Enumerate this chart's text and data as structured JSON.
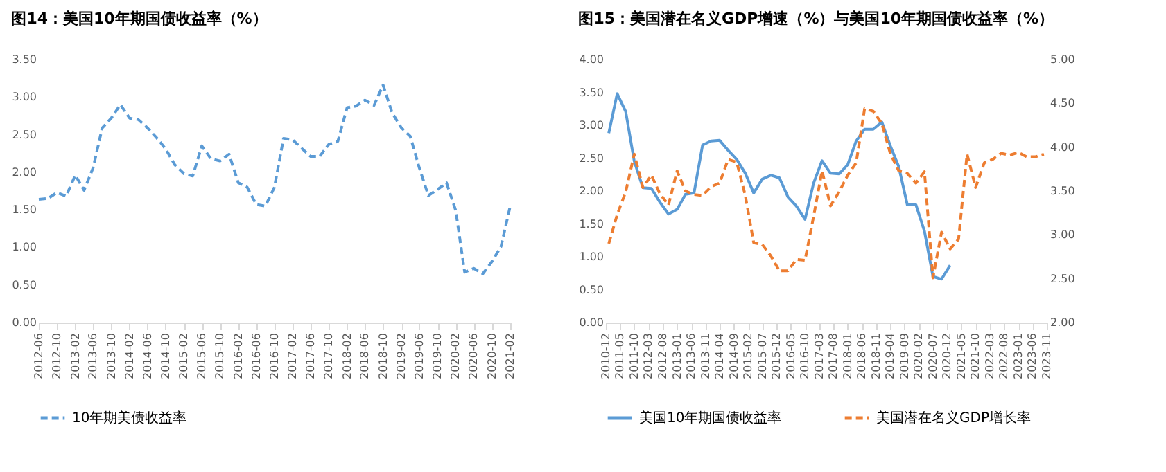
{
  "chart_data": [
    {
      "type": "line",
      "title": "图14：美国10年期国债收益率（%）",
      "legend": "bottom",
      "xlim": [
        "2012-06",
        "2021-02"
      ],
      "xticks": [
        "2012-06",
        "2012-10",
        "2013-02",
        "2013-06",
        "2013-10",
        "2014-02",
        "2014-06",
        "2014-10",
        "2015-02",
        "2015-06",
        "2015-10",
        "2016-02",
        "2016-06",
        "2016-10",
        "2017-02",
        "2017-06",
        "2017-10",
        "2018-02",
        "2018-06",
        "2018-10",
        "2019-02",
        "2019-06",
        "2019-10",
        "2020-02",
        "2020-06",
        "2020-10",
        "2021-02"
      ],
      "ylim": [
        0,
        3.5
      ],
      "yticks": [
        {
          "value": 0,
          "label": "0.00"
        },
        {
          "value": 0.5,
          "label": "0.50"
        },
        {
          "value": 1,
          "label": "1.00"
        },
        {
          "value": 1.5,
          "label": "1.50"
        },
        {
          "value": 2,
          "label": "2.00"
        },
        {
          "value": 2.5,
          "label": "2.50"
        },
        {
          "value": 3,
          "label": "3.00"
        },
        {
          "value": 3.5,
          "label": "3.50"
        }
      ],
      "x": [
        "2012-06",
        "2012-08",
        "2012-10",
        "2012-12",
        "2013-02",
        "2013-04",
        "2013-06",
        "2013-08",
        "2013-10",
        "2013-12",
        "2014-02",
        "2014-04",
        "2014-06",
        "2014-08",
        "2014-10",
        "2014-12",
        "2015-02",
        "2015-04",
        "2015-06",
        "2015-08",
        "2015-10",
        "2015-12",
        "2016-02",
        "2016-04",
        "2016-06",
        "2016-08",
        "2016-10",
        "2016-12",
        "2017-02",
        "2017-04",
        "2017-06",
        "2017-08",
        "2017-10",
        "2017-12",
        "2018-02",
        "2018-04",
        "2018-06",
        "2018-08",
        "2018-10",
        "2018-12",
        "2019-02",
        "2019-04",
        "2019-06",
        "2019-08",
        "2019-10",
        "2019-12",
        "2020-02",
        "2020-04",
        "2020-06",
        "2020-08",
        "2020-10",
        "2020-12",
        "2021-02"
      ],
      "series": [
        {
          "name": "10年期美债收益率",
          "color": "#5b9bd5",
          "line_style": "dashed",
          "values": [
            1.64,
            1.65,
            1.73,
            1.68,
            1.96,
            1.76,
            2.06,
            2.59,
            2.72,
            2.9,
            2.72,
            2.7,
            2.59,
            2.46,
            2.31,
            2.1,
            1.98,
            1.95,
            2.35,
            2.18,
            2.15,
            2.24,
            1.86,
            1.8,
            1.57,
            1.55,
            1.8,
            2.45,
            2.43,
            2.32,
            2.21,
            2.21,
            2.37,
            2.41,
            2.86,
            2.88,
            2.96,
            2.89,
            3.16,
            2.79,
            2.59,
            2.48,
            2.06,
            1.69,
            1.77,
            1.86,
            1.49,
            0.67,
            0.72,
            0.65,
            0.81,
            1.01,
            1.55
          ]
        }
      ]
    },
    {
      "type": "line",
      "title": "图15：美国潜在名义GDP增速（%）与美国10年期国债收益率（%）",
      "legend": "bottom",
      "xlim": [
        "2010-12",
        "2023-11"
      ],
      "xticks": [
        "2010-12",
        "2011-05",
        "2011-10",
        "2012-03",
        "2012-08",
        "2013-01",
        "2013-06",
        "2013-11",
        "2014-04",
        "2014-09",
        "2015-02",
        "2015-07",
        "2015-12",
        "2016-05",
        "2016-10",
        "2017-03",
        "2017-08",
        "2018-01",
        "2018-06",
        "2018-11",
        "2019-04",
        "2019-09",
        "2020-02",
        "2020-07",
        "2020-12",
        "2021-05",
        "2021-10",
        "2022-03",
        "2022-08",
        "2023-01",
        "2023-06",
        "2023-11"
      ],
      "ylim": [
        0,
        4
      ],
      "yticks": [
        {
          "value": 0,
          "label": "0.00"
        },
        {
          "value": 0.5,
          "label": "0.50"
        },
        {
          "value": 1,
          "label": "1.00"
        },
        {
          "value": 1.5,
          "label": "1.50"
        },
        {
          "value": 2,
          "label": "2.00"
        },
        {
          "value": 2.5,
          "label": "2.50"
        },
        {
          "value": 3,
          "label": "3.00"
        },
        {
          "value": 3.5,
          "label": "3.50"
        },
        {
          "value": 4,
          "label": "4.00"
        }
      ],
      "y2lim": [
        2,
        5
      ],
      "y2ticks": [
        {
          "value": 2,
          "label": "2.00"
        },
        {
          "value": 2.5,
          "label": "2.50"
        },
        {
          "value": 3,
          "label": "3.00"
        },
        {
          "value": 3.5,
          "label": "3.50"
        },
        {
          "value": 4,
          "label": "4.00"
        },
        {
          "value": 4.5,
          "label": "4.50"
        },
        {
          "value": 5,
          "label": "5.00"
        }
      ],
      "series": [
        {
          "name": "美国10年期国债收益率",
          "color": "#5b9bd5",
          "line_style": "solid",
          "x": [
            "2011-01",
            "2011-04",
            "2011-07",
            "2011-10",
            "2012-01",
            "2012-04",
            "2012-07",
            "2012-10",
            "2013-01",
            "2013-04",
            "2013-07",
            "2013-10",
            "2014-01",
            "2014-04",
            "2014-07",
            "2014-10",
            "2015-01",
            "2015-04",
            "2015-07",
            "2015-10",
            "2016-01",
            "2016-04",
            "2016-07",
            "2016-10",
            "2017-01",
            "2017-04",
            "2017-07",
            "2017-10",
            "2018-01",
            "2018-04",
            "2018-07",
            "2018-10",
            "2019-01",
            "2019-04",
            "2019-07",
            "2019-10",
            "2020-01",
            "2020-04",
            "2020-07",
            "2020-10",
            "2021-01"
          ],
          "values": [
            2.88,
            3.48,
            3.21,
            2.45,
            2.05,
            2.04,
            1.83,
            1.65,
            1.72,
            1.95,
            1.97,
            2.7,
            2.76,
            2.77,
            2.62,
            2.48,
            2.27,
            1.97,
            2.18,
            2.24,
            2.2,
            1.91,
            1.77,
            1.57,
            2.12,
            2.46,
            2.27,
            2.26,
            2.4,
            2.76,
            2.94,
            2.94,
            3.05,
            2.69,
            2.37,
            1.79,
            1.79,
            1.39,
            0.7,
            0.66,
            0.87
          ]
        },
        {
          "name": "美国潜在名义GDP增长率",
          "color": "#ed7d31",
          "line_style": "dashed",
          "axis": "y2",
          "x": [
            "2011-01",
            "2011-04",
            "2011-07",
            "2011-10",
            "2012-01",
            "2012-04",
            "2012-07",
            "2012-10",
            "2013-01",
            "2013-04",
            "2013-07",
            "2013-10",
            "2014-01",
            "2014-04",
            "2014-07",
            "2014-10",
            "2015-01",
            "2015-04",
            "2015-07",
            "2015-10",
            "2016-01",
            "2016-04",
            "2016-07",
            "2016-10",
            "2017-01",
            "2017-04",
            "2017-07",
            "2017-10",
            "2018-01",
            "2018-04",
            "2018-07",
            "2018-10",
            "2019-01",
            "2019-04",
            "2019-07",
            "2019-10",
            "2020-01",
            "2020-04",
            "2020-07",
            "2020-10",
            "2021-01",
            "2021-04",
            "2021-07",
            "2021-10",
            "2022-01",
            "2022-04",
            "2022-07",
            "2022-10",
            "2023-01",
            "2023-04",
            "2023-07",
            "2023-10"
          ],
          "values": [
            2.9,
            3.23,
            3.49,
            3.92,
            3.54,
            3.68,
            3.47,
            3.34,
            3.73,
            3.5,
            3.46,
            3.45,
            3.55,
            3.59,
            3.86,
            3.83,
            3.45,
            2.91,
            2.89,
            2.76,
            2.59,
            2.59,
            2.72,
            2.71,
            3.21,
            3.73,
            3.33,
            3.49,
            3.68,
            3.82,
            4.44,
            4.41,
            4.27,
            3.93,
            3.73,
            3.7,
            3.59,
            3.72,
            2.51,
            3.03,
            2.84,
            2.95,
            3.92,
            3.54,
            3.82,
            3.86,
            3.93,
            3.91,
            3.94,
            3.89,
            3.89,
            3.92
          ]
        }
      ]
    }
  ]
}
